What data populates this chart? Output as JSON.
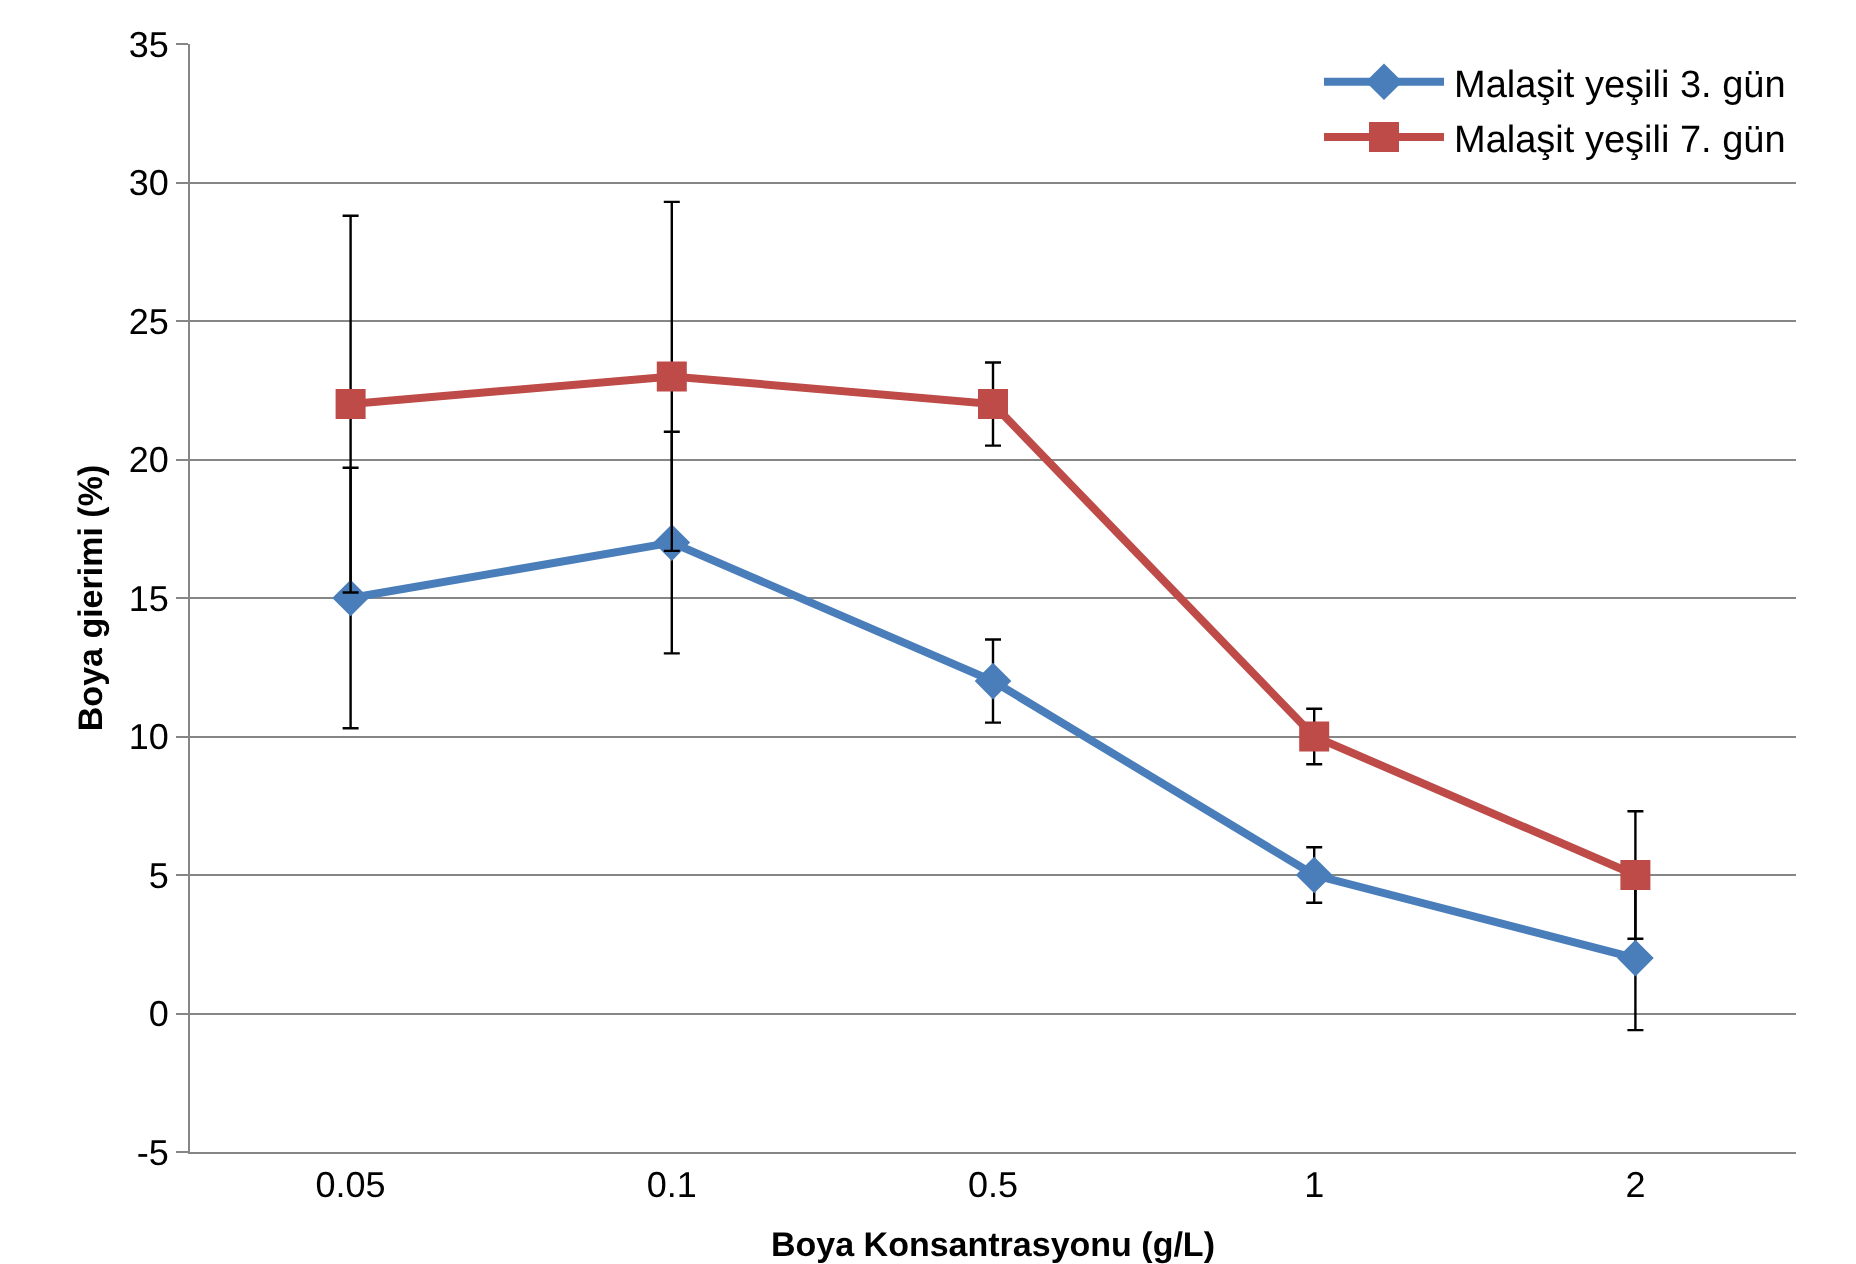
{
  "chart_data": {
    "type": "line",
    "xlabel": "Boya Konsantrasyonu (g/L)",
    "ylabel": "Boya gierimi (%)",
    "categories": [
      "0.05",
      "0.1",
      "0.5",
      "1",
      "2"
    ],
    "series": [
      {
        "name": "Malaşit yeşili 3. gün",
        "color": "#4a7ebb",
        "marker": "diamond",
        "values": [
          15,
          17,
          12,
          5,
          2
        ],
        "errors": [
          4.7,
          4,
          1.5,
          1,
          2.6
        ]
      },
      {
        "name": "Malaşit yeşili 7. gün",
        "color": "#be4b48",
        "marker": "square",
        "values": [
          22,
          23,
          22,
          10,
          5
        ],
        "errors": [
          6.8,
          6.3,
          1.5,
          1,
          2.3
        ]
      }
    ],
    "ylim": [
      -5,
      35
    ],
    "yticks": [
      -5,
      0,
      5,
      10,
      15,
      20,
      25,
      30,
      35
    ],
    "grid": "y",
    "legend": "top right",
    "line_style": "solid"
  }
}
